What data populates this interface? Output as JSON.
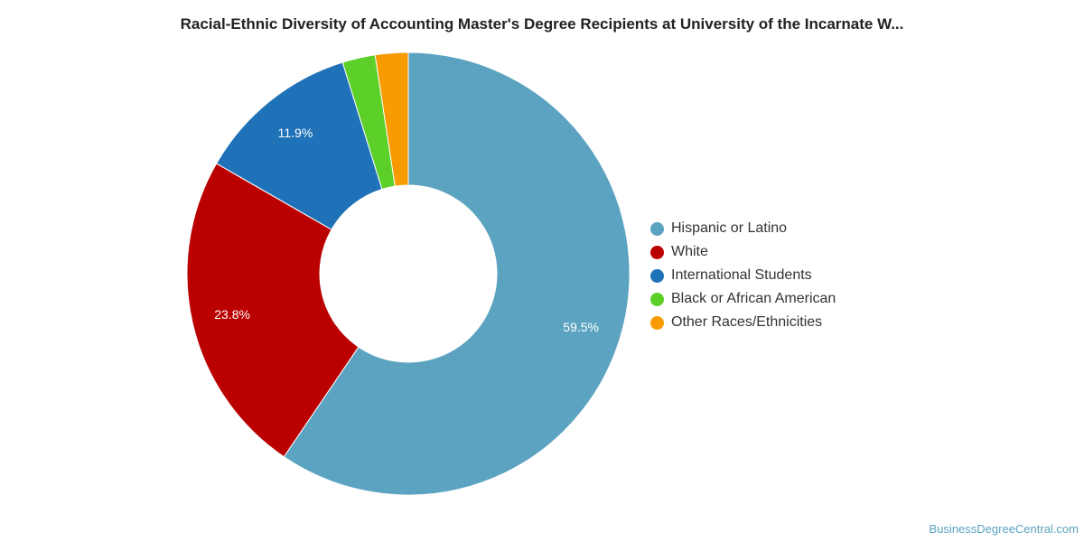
{
  "chart_data": {
    "type": "pie",
    "title": "Racial-Ethnic Diversity of Accounting Master's Degree Recipients at University of the Incarnate W...",
    "donut": true,
    "start_angle_deg": 0,
    "direction": "clockwise",
    "slices": [
      {
        "name": "Hispanic or Latino",
        "value": 59.5,
        "label": "59.5%",
        "color": "#5ba3c0"
      },
      {
        "name": "White",
        "value": 23.8,
        "label": "23.8%",
        "color": "#bb0000"
      },
      {
        "name": "International Students",
        "value": 11.9,
        "label": "11.9%",
        "color": "#1f72b8"
      },
      {
        "name": "Black or African American",
        "value": 2.4,
        "label": "",
        "color": "#5ccf29"
      },
      {
        "name": "Other Races/Ethnicities",
        "value": 2.4,
        "label": "",
        "color": "#f79b00"
      }
    ],
    "legend_position": "right"
  },
  "footer": {
    "source": "BusinessDegreeCentral.com"
  }
}
